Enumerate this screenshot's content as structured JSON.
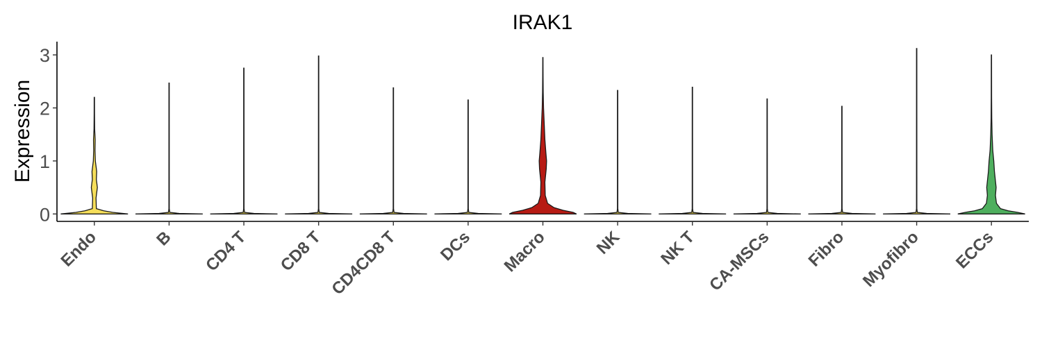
{
  "chart_data": {
    "type": "violin",
    "title": "IRAK1",
    "xlabel": "",
    "ylabel": "Expression",
    "ylim": [
      -0.14,
      3.25
    ],
    "yticks": [
      0,
      1,
      2,
      3
    ],
    "grid": false,
    "legend": "none",
    "categories": [
      "Endo",
      "B",
      "CD4 T",
      "CD8 T",
      "CD4CD8 T",
      "DCs",
      "Macro",
      "NK",
      "NK T",
      "CA-MSCs",
      "Fibro",
      "Myofibro",
      "ECCs"
    ],
    "series": [
      {
        "category": "Endo",
        "color": "#F5DE5A",
        "max": 2.2,
        "density": [
          [
            0,
            1
          ],
          [
            0.03,
            0.55
          ],
          [
            0.06,
            0.28
          ],
          [
            0.1,
            0.06
          ],
          [
            0.3,
            0.05
          ],
          [
            0.5,
            0.09
          ],
          [
            0.65,
            0.06
          ],
          [
            0.8,
            0.07
          ],
          [
            1.0,
            0.03
          ],
          [
            1.2,
            0.02
          ],
          [
            1.4,
            0.025
          ],
          [
            1.6,
            0.01
          ],
          [
            1.9,
            0.006
          ],
          [
            2.2,
            0.005
          ]
        ]
      },
      {
        "category": "B",
        "color": "#F5DE5A",
        "max": 2.47,
        "density": [
          [
            0,
            1
          ],
          [
            0.01,
            0.3
          ],
          [
            0.03,
            0.02
          ],
          [
            0.1,
            0.006
          ],
          [
            2.47,
            0.005
          ]
        ]
      },
      {
        "category": "CD4 T",
        "color": "#F5DE5A",
        "max": 2.75,
        "density": [
          [
            0,
            1
          ],
          [
            0.01,
            0.3
          ],
          [
            0.03,
            0.02
          ],
          [
            0.1,
            0.006
          ],
          [
            2.75,
            0.005
          ]
        ]
      },
      {
        "category": "CD8 T",
        "color": "#F5DE5A",
        "max": 2.98,
        "density": [
          [
            0,
            1
          ],
          [
            0.01,
            0.3
          ],
          [
            0.03,
            0.02
          ],
          [
            0.1,
            0.006
          ],
          [
            2.98,
            0.005
          ]
        ]
      },
      {
        "category": "CD4CD8 T",
        "color": "#F5DE5A",
        "max": 2.38,
        "density": [
          [
            0,
            1
          ],
          [
            0.01,
            0.3
          ],
          [
            0.03,
            0.02
          ],
          [
            0.1,
            0.006
          ],
          [
            2.38,
            0.005
          ]
        ]
      },
      {
        "category": "DCs",
        "color": "#F5DE5A",
        "max": 2.15,
        "density": [
          [
            0,
            1
          ],
          [
            0.01,
            0.3
          ],
          [
            0.03,
            0.02
          ],
          [
            0.1,
            0.006
          ],
          [
            2.15,
            0.005
          ]
        ]
      },
      {
        "category": "Macro",
        "color": "#B71B14",
        "max": 2.95,
        "density": [
          [
            0,
            1
          ],
          [
            0.03,
            0.9
          ],
          [
            0.07,
            0.6
          ],
          [
            0.12,
            0.33
          ],
          [
            0.2,
            0.14
          ],
          [
            0.35,
            0.07
          ],
          [
            0.6,
            0.06
          ],
          [
            0.85,
            0.1
          ],
          [
            1.0,
            0.11
          ],
          [
            1.15,
            0.09
          ],
          [
            1.4,
            0.06
          ],
          [
            1.7,
            0.04
          ],
          [
            2.0,
            0.02
          ],
          [
            2.3,
            0.01
          ],
          [
            2.6,
            0.006
          ],
          [
            2.95,
            0.004
          ]
        ]
      },
      {
        "category": "NK",
        "color": "#F5DE5A",
        "max": 2.33,
        "density": [
          [
            0,
            1
          ],
          [
            0.01,
            0.3
          ],
          [
            0.03,
            0.02
          ],
          [
            0.1,
            0.006
          ],
          [
            2.33,
            0.005
          ]
        ]
      },
      {
        "category": "NK T",
        "color": "#F5DE5A",
        "max": 2.39,
        "density": [
          [
            0,
            1
          ],
          [
            0.01,
            0.3
          ],
          [
            0.03,
            0.02
          ],
          [
            0.1,
            0.006
          ],
          [
            2.39,
            0.005
          ]
        ]
      },
      {
        "category": "CA-MSCs",
        "color": "#F5DE5A",
        "max": 2.17,
        "density": [
          [
            0,
            1
          ],
          [
            0.01,
            0.3
          ],
          [
            0.03,
            0.02
          ],
          [
            0.1,
            0.006
          ],
          [
            2.17,
            0.005
          ]
        ]
      },
      {
        "category": "Fibro",
        "color": "#F5DE5A",
        "max": 2.03,
        "density": [
          [
            0,
            1
          ],
          [
            0.01,
            0.3
          ],
          [
            0.03,
            0.02
          ],
          [
            0.1,
            0.006
          ],
          [
            2.03,
            0.005
          ]
        ]
      },
      {
        "category": "Myofibro",
        "color": "#F5DE5A",
        "max": 3.12,
        "density": [
          [
            0,
            1
          ],
          [
            0.01,
            0.3
          ],
          [
            0.03,
            0.02
          ],
          [
            0.1,
            0.006
          ],
          [
            3.12,
            0.005
          ]
        ]
      },
      {
        "category": "ECCs",
        "color": "#4EAF5E",
        "max": 3.0,
        "density": [
          [
            0,
            1
          ],
          [
            0.03,
            0.78
          ],
          [
            0.06,
            0.5
          ],
          [
            0.1,
            0.27
          ],
          [
            0.2,
            0.15
          ],
          [
            0.35,
            0.12
          ],
          [
            0.5,
            0.14
          ],
          [
            0.62,
            0.12
          ],
          [
            0.8,
            0.09
          ],
          [
            1.0,
            0.07
          ],
          [
            1.2,
            0.04
          ],
          [
            1.5,
            0.02
          ],
          [
            1.8,
            0.01
          ],
          [
            2.2,
            0.006
          ],
          [
            2.6,
            0.005
          ],
          [
            3.0,
            0.004
          ]
        ]
      }
    ]
  }
}
